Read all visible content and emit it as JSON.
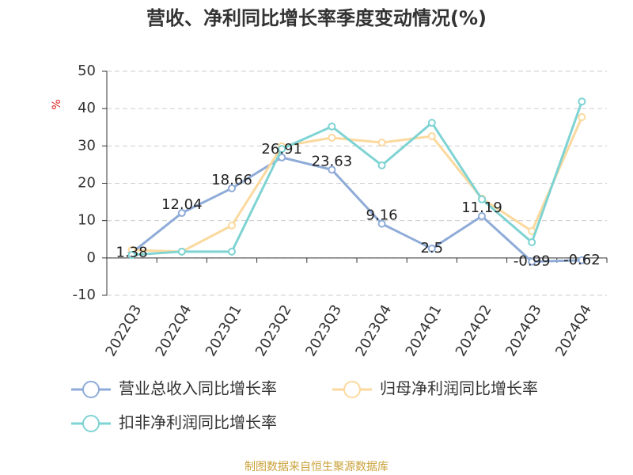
{
  "chart_data": {
    "type": "line",
    "title": "营收、净利同比增长率季度变动情况(%)",
    "y_unit": "%",
    "source": "制图数据来自恒生聚源数据库",
    "categories": [
      "2022Q3",
      "2022Q4",
      "2023Q1",
      "2023Q2",
      "2023Q3",
      "2023Q4",
      "2024Q1",
      "2024Q2",
      "2024Q3",
      "2024Q4"
    ],
    "series": [
      {
        "name": "营业总收入同比增长率",
        "color": "#8fabd8",
        "values": [
          1.38,
          12.04,
          18.66,
          26.91,
          23.63,
          9.16,
          2.5,
          11.19,
          -0.99,
          -0.62
        ],
        "show_labels": true
      },
      {
        "name": "归母净利润同比增长率",
        "color": "#fbd99e",
        "values": [
          2.1,
          1.7,
          8.7,
          29.9,
          32.2,
          30.9,
          32.6,
          15.9,
          7.2,
          37.7
        ]
      },
      {
        "name": "扣非净利润同比增长率",
        "color": "#7fd3d3",
        "values": [
          0.8,
          1.7,
          1.7,
          29.2,
          35.2,
          24.8,
          36.2,
          15.7,
          4.2,
          41.9
        ]
      }
    ],
    "ylim": [
      -10,
      50
    ],
    "yticks": [
      -10,
      0,
      10,
      20,
      30,
      40,
      50
    ],
    "grid": true
  }
}
